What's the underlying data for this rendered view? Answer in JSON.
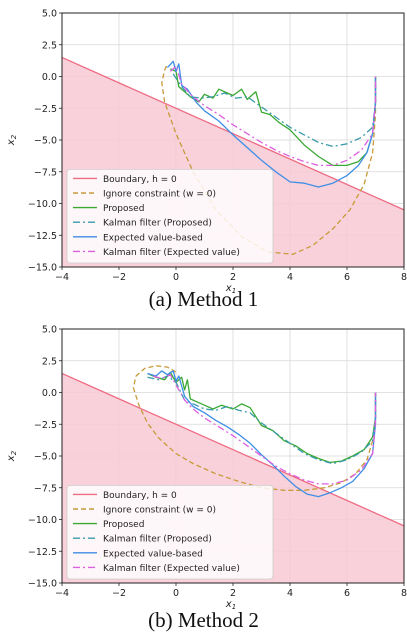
{
  "colors": {
    "boundary": "#ee6b83",
    "region": "#f8c9d3",
    "ignore": "#c79a3a",
    "proposed": "#3aa934",
    "kalman_proposed": "#3a9aaa",
    "expected": "#3f8ee5",
    "kalman_expected": "#dc5fe0",
    "grid": "#d8d8d8"
  },
  "legend": [
    {
      "key": "boundary",
      "label": "Boundary, h = 0",
      "dash": "none"
    },
    {
      "key": "ignore",
      "label": "Ignore constraint  (w = 0)",
      "dash": "5,3"
    },
    {
      "key": "proposed",
      "label": "Proposed",
      "dash": "none"
    },
    {
      "key": "kalman_proposed",
      "label": "Kalman filter (Proposed)",
      "dash": "7,3,2,3"
    },
    {
      "key": "expected",
      "label": "Expected value-based",
      "dash": "none"
    },
    {
      "key": "kalman_expected",
      "label": "Kalman filter (Expected value)",
      "dash": "7,3,2,3"
    }
  ],
  "chart_data": [
    {
      "type": "line",
      "caption": "(a) Method 1",
      "xlabel": "x1",
      "ylabel": "x2",
      "xlim": [
        -4,
        8
      ],
      "ylim": [
        -15,
        5
      ],
      "xticks": [
        -4,
        -2,
        0,
        2,
        4,
        6,
        8
      ],
      "yticks": [
        5.0,
        2.5,
        0.0,
        -2.5,
        -5.0,
        -7.5,
        -10.0,
        -12.5,
        -15.0
      ],
      "ytick_labels": [
        "5.0",
        "2.5",
        "0.0",
        "−2.5",
        "−5.0",
        "−7.5",
        "−10.0",
        "−12.5",
        "−15.0"
      ],
      "xtick_labels": [
        "−4",
        "−2",
        "0",
        "2",
        "4",
        "6",
        "8"
      ],
      "grid": true,
      "legend_position": "lower-left",
      "boundary": {
        "x": [
          -4,
          8
        ],
        "y": [
          1.5,
          -10.5
        ]
      },
      "series": [
        {
          "key": "ignore",
          "x": [
            7.0,
            7.0,
            6.9,
            6.6,
            6.1,
            5.5,
            4.8,
            4.1,
            3.2,
            2.3,
            1.4,
            0.6,
            0.0,
            -0.4,
            -0.5,
            -0.4,
            -0.3
          ],
          "y": [
            0.0,
            -3.0,
            -6.0,
            -8.5,
            -10.5,
            -12.0,
            -13.3,
            -14.0,
            -13.8,
            -12.6,
            -10.5,
            -7.5,
            -4.5,
            -2.0,
            -0.5,
            0.5,
            1.0
          ]
        },
        {
          "key": "proposed",
          "x": [
            -0.2,
            0.0,
            0.1,
            0.3,
            0.5,
            0.8,
            1.0,
            1.3,
            1.5,
            1.8,
            2.0,
            2.3,
            2.5,
            2.8,
            3.0,
            3.3,
            3.6,
            4.0,
            4.5,
            5.0,
            5.5,
            6.0,
            6.4,
            6.7,
            6.9,
            7.0,
            7.0
          ],
          "y": [
            0.6,
            0.4,
            -0.8,
            -1.2,
            -1.6,
            -2.0,
            -1.4,
            -1.7,
            -1.0,
            -1.3,
            -1.5,
            -1.0,
            -1.8,
            -1.2,
            -2.8,
            -3.0,
            -3.6,
            -4.2,
            -5.4,
            -6.3,
            -7.0,
            -7.0,
            -6.7,
            -6.0,
            -4.5,
            -2.0,
            0.0
          ]
        },
        {
          "key": "kalman_proposed",
          "x": [
            -0.1,
            0.2,
            0.5,
            0.9,
            1.3,
            1.7,
            2.1,
            2.5,
            3.0,
            3.5,
            4.0,
            4.5,
            5.0,
            5.5,
            6.0,
            6.5,
            6.9,
            7.0,
            7.0
          ],
          "y": [
            0.2,
            -0.8,
            -1.6,
            -1.7,
            -1.6,
            -1.3,
            -1.7,
            -1.6,
            -2.4,
            -3.2,
            -4.0,
            -4.6,
            -5.2,
            -5.5,
            -5.3,
            -4.8,
            -4.0,
            -2.0,
            0.0
          ]
        },
        {
          "key": "expected",
          "x": [
            -0.3,
            -0.1,
            0.0,
            0.1,
            0.2,
            0.4,
            0.7,
            1.0,
            1.5,
            2.0,
            2.5,
            3.0,
            3.5,
            4.0,
            4.5,
            5.0,
            5.5,
            6.0,
            6.4,
            6.7,
            6.9,
            7.0,
            7.0
          ],
          "y": [
            0.7,
            1.2,
            0.4,
            1.0,
            -0.7,
            -1.0,
            -2.0,
            -2.7,
            -3.5,
            -4.6,
            -5.6,
            -6.6,
            -7.5,
            -8.3,
            -8.4,
            -8.7,
            -8.4,
            -7.8,
            -7.0,
            -6.0,
            -4.5,
            -2.0,
            0.0
          ]
        },
        {
          "key": "kalman_expected",
          "x": [
            -0.2,
            0.0,
            0.2,
            0.5,
            1.0,
            1.5,
            2.0,
            2.5,
            3.0,
            3.5,
            4.0,
            4.5,
            5.0,
            5.5,
            6.0,
            6.5,
            6.9,
            7.0,
            7.0
          ],
          "y": [
            0.4,
            0.8,
            -0.6,
            -1.4,
            -2.3,
            -3.0,
            -3.8,
            -4.5,
            -5.2,
            -5.8,
            -6.3,
            -6.7,
            -7.0,
            -7.0,
            -6.6,
            -5.8,
            -4.5,
            -2.0,
            0.0
          ]
        }
      ]
    },
    {
      "type": "line",
      "caption": "(b) Method 2",
      "xlabel": "x1",
      "ylabel": "x2",
      "xlim": [
        -4,
        8
      ],
      "ylim": [
        -15,
        5
      ],
      "xticks": [
        -4,
        -2,
        0,
        2,
        4,
        6,
        8
      ],
      "yticks": [
        5.0,
        2.5,
        0.0,
        -2.5,
        -5.0,
        -7.5,
        -10.0,
        -12.5,
        -15.0
      ],
      "ytick_labels": [
        "5.0",
        "2.5",
        "0.0",
        "−2.5",
        "−5.0",
        "−7.5",
        "−10.0",
        "−12.5",
        "−15.0"
      ],
      "xtick_labels": [
        "−4",
        "−2",
        "0",
        "2",
        "4",
        "6",
        "8"
      ],
      "grid": true,
      "legend_position": "lower-left",
      "boundary": {
        "x": [
          -4,
          8
        ],
        "y": [
          1.5,
          -10.5
        ]
      },
      "series": [
        {
          "key": "ignore",
          "x": [
            7.0,
            7.0,
            6.9,
            6.7,
            6.3,
            5.8,
            5.2,
            4.5,
            3.8,
            3.0,
            2.2,
            1.4,
            0.6,
            0.0,
            -0.6,
            -1.0,
            -1.3,
            -1.5,
            -1.4,
            -1.1,
            -0.7,
            -0.3,
            0.0
          ],
          "y": [
            0.0,
            -2.0,
            -3.8,
            -5.3,
            -6.4,
            -7.1,
            -7.5,
            -7.7,
            -7.7,
            -7.5,
            -7.0,
            -6.4,
            -5.6,
            -4.8,
            -3.6,
            -2.4,
            -1.0,
            0.4,
            1.3,
            1.9,
            2.1,
            2.0,
            1.6
          ]
        },
        {
          "key": "proposed",
          "x": [
            -1.0,
            -0.7,
            -0.4,
            -0.2,
            0.0,
            0.2,
            0.3,
            0.4,
            0.5,
            0.8,
            1.0,
            1.3,
            1.6,
            2.0,
            2.3,
            2.6,
            3.0,
            3.4,
            3.8,
            4.2,
            4.6,
            5.0,
            5.4,
            5.8,
            6.2,
            6.6,
            6.9,
            7.0,
            7.0
          ],
          "y": [
            1.5,
            1.2,
            1.0,
            1.6,
            0.8,
            1.2,
            0.2,
            1.0,
            -0.5,
            -0.8,
            -1.0,
            -1.3,
            -1.0,
            -1.3,
            -0.9,
            -1.2,
            -2.6,
            -3.0,
            -3.8,
            -4.2,
            -4.8,
            -5.2,
            -5.5,
            -5.4,
            -5.0,
            -4.5,
            -3.5,
            -2.0,
            0.0
          ]
        },
        {
          "key": "kalman_proposed",
          "x": [
            -1.0,
            -0.6,
            -0.3,
            0.0,
            0.3,
            0.6,
            1.0,
            1.4,
            1.8,
            2.2,
            2.6,
            3.0,
            3.5,
            4.0,
            4.5,
            5.0,
            5.5,
            6.0,
            6.5,
            6.9,
            7.0,
            7.0
          ],
          "y": [
            1.2,
            1.0,
            1.3,
            0.8,
            -0.6,
            -0.9,
            -1.3,
            -1.4,
            -1.1,
            -1.4,
            -1.6,
            -2.4,
            -3.2,
            -4.0,
            -4.8,
            -5.3,
            -5.6,
            -5.3,
            -4.7,
            -3.8,
            -2.0,
            0.0
          ]
        },
        {
          "key": "expected",
          "x": [
            -1.0,
            -0.7,
            -0.5,
            -0.3,
            -0.1,
            0.0,
            0.1,
            0.3,
            0.6,
            1.0,
            1.4,
            1.8,
            2.2,
            2.6,
            3.0,
            3.4,
            3.8,
            4.2,
            4.6,
            5.0,
            5.4,
            5.8,
            6.2,
            6.6,
            6.9,
            7.0,
            7.0
          ],
          "y": [
            1.5,
            1.3,
            1.7,
            1.4,
            1.7,
            0.9,
            1.3,
            -0.3,
            -1.1,
            -1.6,
            -2.2,
            -2.7,
            -3.3,
            -4.0,
            -4.9,
            -5.7,
            -6.6,
            -7.4,
            -8.0,
            -8.2,
            -7.9,
            -7.5,
            -7.0,
            -6.0,
            -4.8,
            -2.5,
            0.0
          ]
        },
        {
          "key": "kalman_expected",
          "x": [
            -0.8,
            -0.5,
            -0.2,
            0.0,
            0.3,
            0.6,
            1.0,
            1.5,
            2.0,
            2.5,
            3.0,
            3.5,
            4.0,
            4.5,
            5.0,
            5.5,
            6.0,
            6.5,
            6.9,
            7.0,
            7.0
          ],
          "y": [
            1.3,
            1.1,
            1.4,
            0.6,
            -0.6,
            -1.3,
            -2.0,
            -2.7,
            -3.4,
            -4.2,
            -5.0,
            -5.8,
            -6.4,
            -6.9,
            -7.2,
            -7.2,
            -6.9,
            -6.1,
            -4.8,
            -2.2,
            0.0
          ]
        }
      ]
    }
  ]
}
